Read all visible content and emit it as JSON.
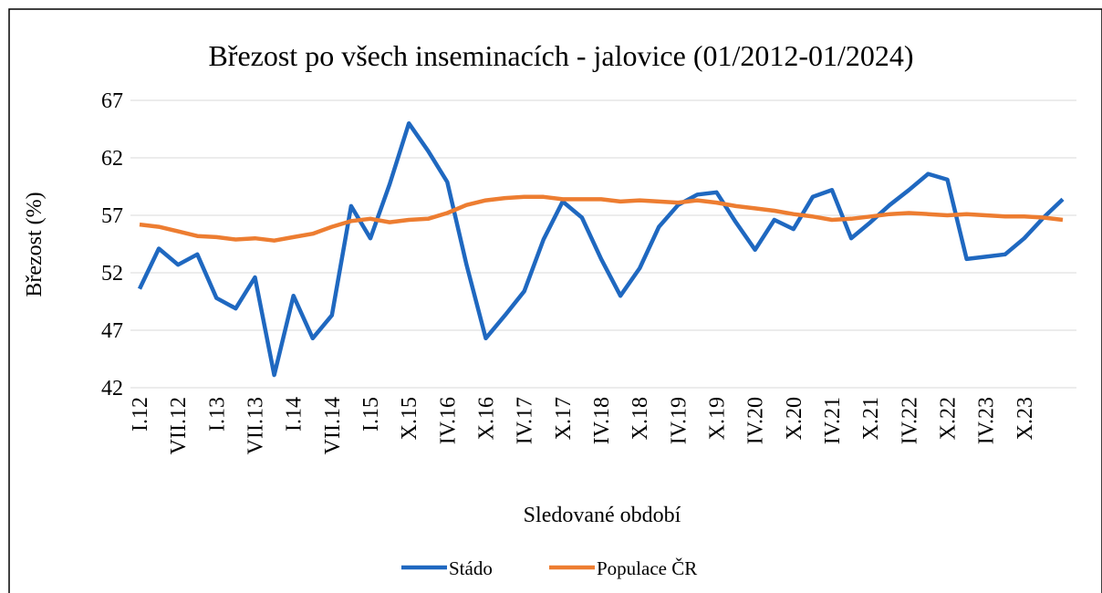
{
  "chart_data": {
    "type": "line",
    "title": "Březost po všech inseminacích - jalovice  (01/2012-01/2024)",
    "x_label": "Sledované období",
    "y_label": "Březost (%)",
    "categories": [
      "I.12",
      null,
      "VII.12",
      null,
      "I.13",
      null,
      "VII.13",
      null,
      "I.14",
      null,
      "VII.14",
      null,
      "I.15",
      null,
      "X.15",
      null,
      "IV.16",
      null,
      "X.16",
      null,
      "IV.17",
      null,
      "X.17",
      null,
      "IV.18",
      null,
      "X.18",
      null,
      "IV.19",
      null,
      "X.19",
      null,
      "IV.20",
      null,
      "X.20",
      null,
      "IV.21",
      null,
      "X.21",
      null,
      "IV.22",
      null,
      "X.22",
      null,
      "IV.23",
      null,
      "X.23",
      null,
      null
    ],
    "series": [
      {
        "name": "Stádo",
        "color": "#1f68c0",
        "values": [
          50.6,
          54.1,
          52.7,
          53.6,
          49.8,
          48.9,
          51.6,
          43.1,
          50.0,
          46.3,
          48.3,
          57.8,
          55.0,
          59.7,
          65.0,
          62.6,
          59.9,
          52.7,
          46.3,
          48.3,
          50.4,
          54.9,
          58.2,
          56.8,
          53.2,
          50.0,
          52.4,
          56.0,
          57.9,
          58.8,
          59.0,
          56.4,
          54.0,
          56.6,
          55.8,
          58.6,
          59.2,
          55.0,
          56.4,
          57.9,
          59.2,
          60.6,
          60.1,
          53.2,
          53.4,
          53.6,
          55.0,
          56.8,
          58.4
        ]
      },
      {
        "name": "Populace ČR",
        "color": "#ed7d31",
        "values": [
          56.2,
          56.0,
          55.6,
          55.2,
          55.1,
          54.9,
          55.0,
          54.8,
          55.1,
          55.4,
          56.0,
          56.5,
          56.7,
          56.4,
          56.6,
          56.7,
          57.2,
          57.9,
          58.3,
          58.5,
          58.6,
          58.6,
          58.4,
          58.4,
          58.4,
          58.2,
          58.3,
          58.2,
          58.1,
          58.3,
          58.1,
          57.8,
          57.6,
          57.4,
          57.1,
          56.9,
          56.6,
          56.7,
          56.9,
          57.1,
          57.2,
          57.1,
          57.0,
          57.1,
          57.0,
          56.9,
          56.9,
          56.8,
          56.6
        ]
      }
    ],
    "ylim": [
      42,
      67
    ],
    "yticks": [
      42,
      47,
      52,
      57,
      62,
      67
    ],
    "grid": true,
    "legend": "bottom"
  }
}
